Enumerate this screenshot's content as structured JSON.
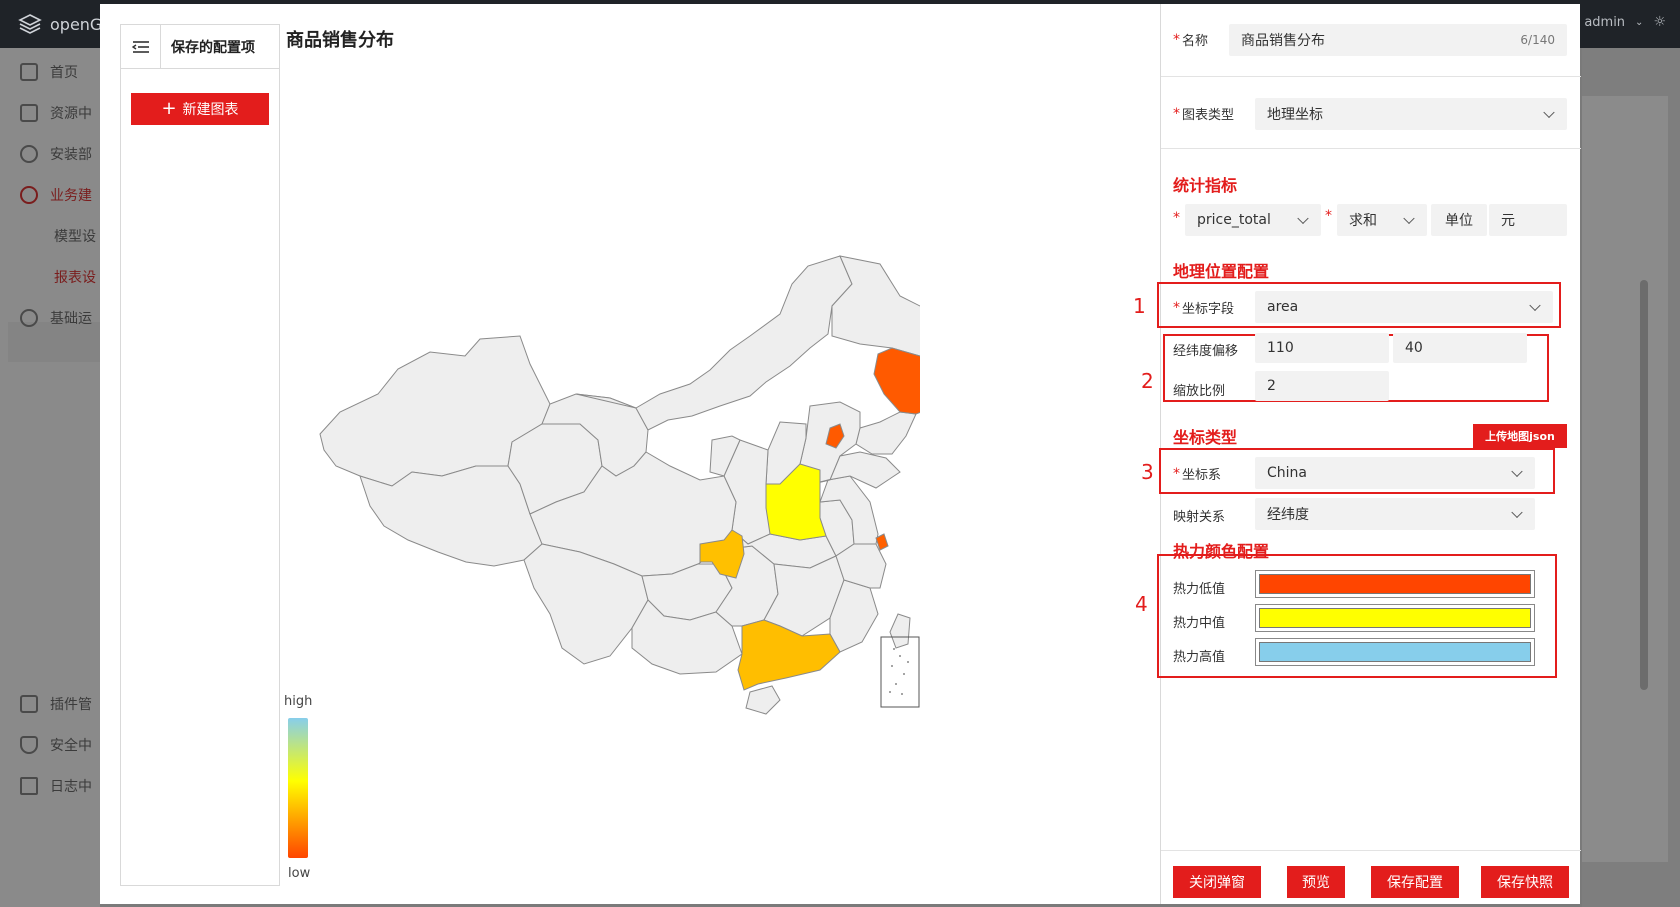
{
  "app": {
    "brand": "openG",
    "user": "admin"
  },
  "nav": {
    "items": [
      {
        "label": "首页"
      },
      {
        "label": "资源中"
      },
      {
        "label": "安装部"
      },
      {
        "label": "业务建"
      },
      {
        "label": "模型设"
      },
      {
        "label": "报表设"
      },
      {
        "label": "基础运"
      },
      {
        "label": "插件管"
      },
      {
        "label": "安全中"
      },
      {
        "label": "日志中"
      }
    ]
  },
  "sidebar": {
    "title": "保存的配置项",
    "new_button": "新建图表"
  },
  "chart": {
    "title": "商品销售分布",
    "legend_high": "high",
    "legend_low": "low"
  },
  "chart_data": {
    "type": "map",
    "title": "商品销售分布",
    "region": "China",
    "visual_map": {
      "high_label": "high",
      "low_label": "low",
      "colors": [
        "#ff4500",
        "#ffff00",
        "#87ceeb"
      ]
    },
    "highlighted_regions": [
      {
        "region": "jilin",
        "level": "low",
        "color": "#ff5a00"
      },
      {
        "region": "beijing",
        "level": "low",
        "color": "#ff5a00"
      },
      {
        "region": "henan",
        "level": "mid",
        "color": "#ffff00"
      },
      {
        "region": "chongqing",
        "level": "mid-low",
        "color": "#ffc000"
      },
      {
        "region": "guangdong",
        "level": "mid-low",
        "color": "#ffbe00"
      },
      {
        "region": "shanghai",
        "level": "low",
        "color": "#ff6000"
      }
    ]
  },
  "config": {
    "name_label": "名称",
    "name_value": "商品销售分布",
    "name_counter": "6/140",
    "chart_type_label": "图表类型",
    "chart_type_value": "地理坐标",
    "metrics_section": "统计指标",
    "metric_field": "price_total",
    "metric_agg": "求和",
    "unit_label": "单位",
    "unit_value": "元",
    "geo_section": "地理位置配置",
    "coord_field_label": "坐标字段",
    "coord_field_value": "area",
    "offset_label": "经纬度偏移",
    "offset_lng": "110",
    "offset_lat": "40",
    "scale_label": "缩放比例",
    "scale_value": "2",
    "coord_type_section": "坐标类型",
    "upload_label": "上传地图json",
    "coord_sys_label": "坐标系",
    "coord_sys_value": "China",
    "mapping_label": "映射关系",
    "mapping_value": "经纬度",
    "heat_section": "热力颜色配置",
    "heat_low_label": "热力低值",
    "heat_mid_label": "热力中值",
    "heat_high_label": "热力高值",
    "heat_low_color": "#ff4500",
    "heat_mid_color": "#ffff00",
    "heat_high_color": "#87ceeb",
    "markers": [
      "1",
      "2",
      "3",
      "4"
    ]
  },
  "footer": {
    "close": "关闭弹窗",
    "preview": "预览",
    "save_config": "保存配置",
    "save_snapshot": "保存快照"
  }
}
